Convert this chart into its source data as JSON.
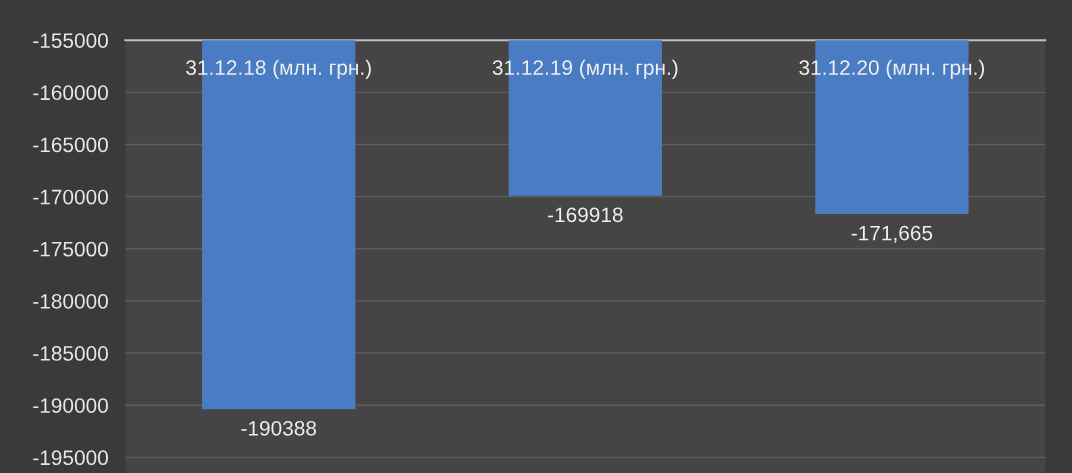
{
  "chart_data": {
    "type": "bar",
    "categories": [
      "31.12.18 (млн. грн.)",
      "31.12.19 (млн. грн.)",
      "31.12.20 (млн. грн.)"
    ],
    "values": [
      -190388,
      -169918,
      -171665
    ],
    "value_labels": [
      "-190388",
      "-169918",
      "-171,665"
    ],
    "color": "#4a7cc4",
    "ylim": [
      -196500,
      -155000
    ],
    "yticks": [
      -155000,
      -160000,
      -165000,
      -170000,
      -175000,
      -180000,
      -185000,
      -190000,
      -195000
    ],
    "grid": "y"
  }
}
